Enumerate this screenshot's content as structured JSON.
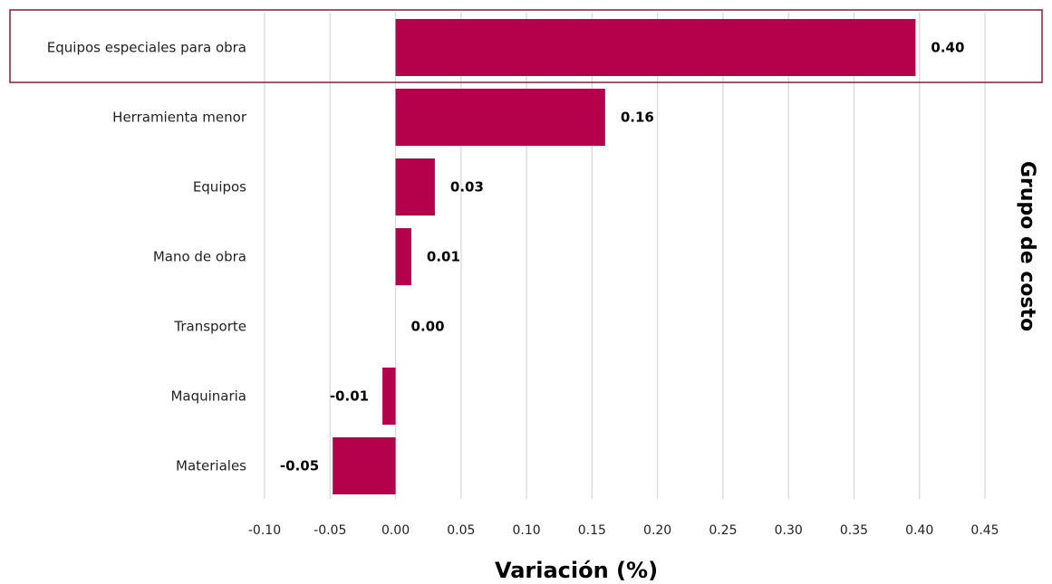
{
  "chart_data": {
    "type": "bar",
    "orientation": "horizontal",
    "categories": [
      "Equipos especiales para obra",
      "Herramienta menor",
      "Equipos",
      "Mano de obra",
      "Transporte",
      "Maquinaria",
      "Materiales"
    ],
    "values": [
      0.397,
      0.16,
      0.03,
      0.012,
      0.0,
      -0.01,
      -0.048
    ],
    "data_labels": [
      "0.40",
      "0.16",
      "0.03",
      "0.01",
      "0.00",
      "-0.01",
      "-0.05"
    ],
    "xlabel": "Variación (%)",
    "ylabel": "Grupo de costo",
    "xlim": [
      -0.1,
      0.45
    ],
    "x_ticks": [
      "-0.10",
      "-0.05",
      "0.00",
      "0.05",
      "0.10",
      "0.15",
      "0.20",
      "0.25",
      "0.30",
      "0.35",
      "0.40",
      "0.45"
    ],
    "x_tick_values": [
      -0.1,
      -0.05,
      0.0,
      0.05,
      0.1,
      0.15,
      0.2,
      0.25,
      0.3,
      0.35,
      0.4,
      0.45
    ],
    "grid": "vertical",
    "ylabel_position": "right",
    "highlighted_category": "Equipos especiales para obra",
    "colors": {
      "bar": "#b5004b",
      "highlight_border": "#8b1a3c",
      "grid": "#d9d9d9"
    }
  }
}
